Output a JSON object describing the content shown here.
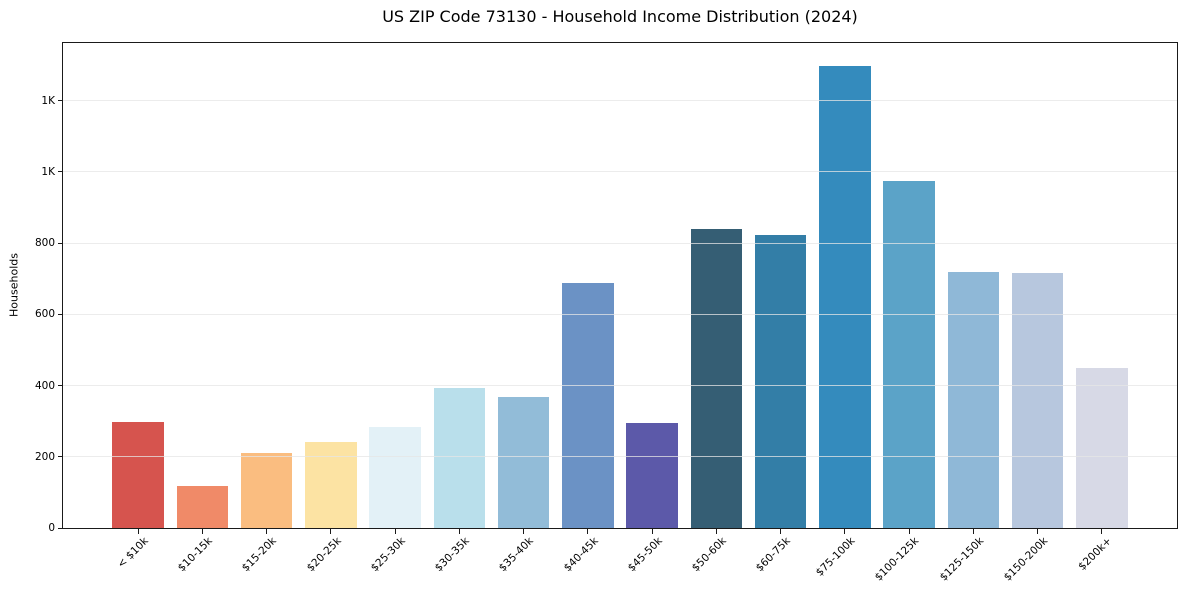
{
  "figure": {
    "background": "#ffffff"
  },
  "chart_data": {
    "type": "bar",
    "title": "US ZIP Code 73130 - Household Income Distribution (2024)",
    "xlabel": "",
    "ylabel": "Households",
    "categories": [
      "< $10k",
      "$10-15k",
      "$15-20k",
      "$20-25k",
      "$25-30k",
      "$30-35k",
      "$35-40k",
      "$40-45k",
      "$45-50k",
      "$50-60k",
      "$60-75k",
      "$75-100k",
      "$100-125k",
      "$125-150k",
      "$150-200k",
      "$200k+"
    ],
    "values": [
      298,
      118,
      212,
      242,
      284,
      394,
      369,
      687,
      296,
      839,
      822,
      1297,
      974,
      720,
      717,
      449
    ],
    "bar_colors": [
      "#d6544e",
      "#f08a68",
      "#fabd80",
      "#fce3a3",
      "#e3f1f7",
      "#b9dfeb",
      "#92bcd8",
      "#6b92c5",
      "#5c59a9",
      "#355e74",
      "#337ea7",
      "#348bbd",
      "#5ba3c8",
      "#8fb8d7",
      "#b7c7de",
      "#d7d9e6"
    ],
    "ylim": [
      0,
      1362
    ],
    "yticks": {
      "values": [
        0,
        200,
        400,
        600,
        800,
        1000,
        1200
      ],
      "labels": [
        "0",
        "200",
        "400",
        "600",
        "800",
        "1K",
        "1K"
      ]
    },
    "grid": "horizontal",
    "gridline_color": "#e6e6e6",
    "axis_color": "#1a1a1a",
    "legend": "none"
  }
}
